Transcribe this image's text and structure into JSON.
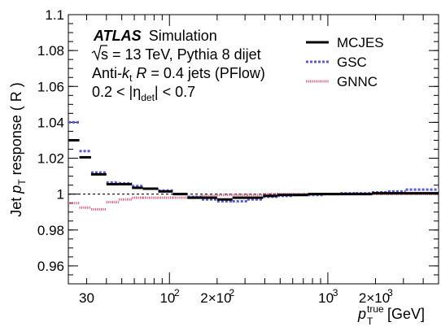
{
  "chart_data": {
    "type": "line",
    "x_scale": "log",
    "xlim": [
      23,
      5000
    ],
    "ylim": [
      0.95,
      1.1
    ],
    "xlabel_main": "p",
    "xlabel_sub": "T",
    "xlabel_sup": "true",
    "xlabel_unit": " [GeV]",
    "ylabel_main": "Jet ",
    "ylabel_p": "p",
    "ylabel_sub": "T",
    "ylabel_rest": " response ( R )",
    "x_tick_labels": [
      {
        "value": 30,
        "text": "30"
      },
      {
        "value": 100,
        "base": "10",
        "exp": "2"
      },
      {
        "value": 200,
        "base": "2×10",
        "exp": "2"
      },
      {
        "value": 1000,
        "base": "10",
        "exp": "3"
      },
      {
        "value": 2000,
        "base": "2×10",
        "exp": "3"
      }
    ],
    "y_tick_labels": [
      {
        "value": 0.96,
        "text": "0.96"
      },
      {
        "value": 0.98,
        "text": "0.98"
      },
      {
        "value": 1.0,
        "text": "1"
      },
      {
        "value": 1.02,
        "text": "1.02"
      },
      {
        "value": 1.04,
        "text": "1.04"
      },
      {
        "value": 1.06,
        "text": "1.06"
      },
      {
        "value": 1.08,
        "text": "1.08"
      },
      {
        "value": 1.1,
        "text": "1.1"
      }
    ],
    "reference_line": 1.0,
    "info": {
      "atlas": "ATLAS",
      "simulation": "Simulation",
      "line2": "s = 13 TeV, Pythia 8 dijet",
      "line3_a": "Anti-",
      "line3_k": "k",
      "line3_t": "t",
      "line3_R": "R",
      "line3_b": " = 0.4 jets (PFlow)",
      "line4_a": "0.2 < |",
      "line4_eta": "η",
      "line4_sub": "det",
      "line4_b": "| < 0.7"
    },
    "legend_position": "top-right",
    "series": [
      {
        "name": "MCJES",
        "color": "#000000",
        "style": "solid",
        "bins": [
          {
            "x0": 23,
            "x1": 27,
            "y": 1.03
          },
          {
            "x0": 27,
            "x1": 32,
            "y": 1.0205
          },
          {
            "x0": 32,
            "x1": 40,
            "y": 1.011
          },
          {
            "x0": 40,
            "x1": 48,
            "y": 1.0055
          },
          {
            "x0": 48,
            "x1": 58,
            "y": 1.0055
          },
          {
            "x0": 58,
            "x1": 68,
            "y": 1.0035
          },
          {
            "x0": 68,
            "x1": 85,
            "y": 1.003
          },
          {
            "x0": 85,
            "x1": 105,
            "y": 1.0015
          },
          {
            "x0": 105,
            "x1": 130,
            "y": 1.0
          },
          {
            "x0": 130,
            "x1": 160,
            "y": 0.998
          },
          {
            "x0": 160,
            "x1": 200,
            "y": 0.998
          },
          {
            "x0": 200,
            "x1": 250,
            "y": 0.997
          },
          {
            "x0": 250,
            "x1": 310,
            "y": 0.998
          },
          {
            "x0": 310,
            "x1": 390,
            "y": 0.998
          },
          {
            "x0": 390,
            "x1": 480,
            "y": 0.999
          },
          {
            "x0": 480,
            "x1": 600,
            "y": 0.9995
          },
          {
            "x0": 600,
            "x1": 750,
            "y": 0.9995
          },
          {
            "x0": 750,
            "x1": 950,
            "y": 1.0
          },
          {
            "x0": 950,
            "x1": 1200,
            "y": 1.0
          },
          {
            "x0": 1200,
            "x1": 1500,
            "y": 1.0
          },
          {
            "x0": 1500,
            "x1": 1900,
            "y": 1.0
          },
          {
            "x0": 1900,
            "x1": 2400,
            "y": 1.0005
          },
          {
            "x0": 2400,
            "x1": 3100,
            "y": 1.0005
          },
          {
            "x0": 3100,
            "x1": 5000,
            "y": 1.0005
          }
        ]
      },
      {
        "name": "GSC",
        "color": "#5a5ae0",
        "style": "dotted-thick",
        "bins": [
          {
            "x0": 23,
            "x1": 27,
            "y": 1.04
          },
          {
            "x0": 27,
            "x1": 32,
            "y": 1.024
          },
          {
            "x0": 32,
            "x1": 40,
            "y": 1.012
          },
          {
            "x0": 40,
            "x1": 48,
            "y": 1.0065
          },
          {
            "x0": 48,
            "x1": 58,
            "y": 1.006
          },
          {
            "x0": 58,
            "x1": 68,
            "y": 1.0045
          },
          {
            "x0": 68,
            "x1": 85,
            "y": 1.003
          },
          {
            "x0": 85,
            "x1": 105,
            "y": 1.002
          },
          {
            "x0": 105,
            "x1": 130,
            "y": 1.0
          },
          {
            "x0": 130,
            "x1": 160,
            "y": 0.9985
          },
          {
            "x0": 160,
            "x1": 200,
            "y": 0.997
          },
          {
            "x0": 200,
            "x1": 250,
            "y": 0.996
          },
          {
            "x0": 250,
            "x1": 310,
            "y": 0.996
          },
          {
            "x0": 310,
            "x1": 390,
            "y": 0.997
          },
          {
            "x0": 390,
            "x1": 480,
            "y": 0.9985
          },
          {
            "x0": 480,
            "x1": 600,
            "y": 0.999
          },
          {
            "x0": 600,
            "x1": 750,
            "y": 0.9995
          },
          {
            "x0": 750,
            "x1": 950,
            "y": 0.9995
          },
          {
            "x0": 950,
            "x1": 1200,
            "y": 1.0
          },
          {
            "x0": 1200,
            "x1": 1500,
            "y": 1.0005
          },
          {
            "x0": 1500,
            "x1": 1900,
            "y": 1.0005
          },
          {
            "x0": 1900,
            "x1": 2400,
            "y": 1.001
          },
          {
            "x0": 2400,
            "x1": 3100,
            "y": 1.0015
          },
          {
            "x0": 3100,
            "x1": 5000,
            "y": 1.0025
          }
        ]
      },
      {
        "name": "GNNC",
        "color": "#d9607a",
        "style": "dotted-thin",
        "bins": [
          {
            "x0": 23,
            "x1": 27,
            "y": 0.995
          },
          {
            "x0": 27,
            "x1": 32,
            "y": 0.9925
          },
          {
            "x0": 32,
            "x1": 40,
            "y": 0.9915
          },
          {
            "x0": 40,
            "x1": 48,
            "y": 0.9955
          },
          {
            "x0": 48,
            "x1": 58,
            "y": 0.997
          },
          {
            "x0": 58,
            "x1": 68,
            "y": 0.998
          },
          {
            "x0": 68,
            "x1": 85,
            "y": 0.998
          },
          {
            "x0": 85,
            "x1": 105,
            "y": 0.998
          },
          {
            "x0": 105,
            "x1": 130,
            "y": 0.998
          },
          {
            "x0": 130,
            "x1": 160,
            "y": 0.9985
          },
          {
            "x0": 160,
            "x1": 200,
            "y": 0.999
          },
          {
            "x0": 200,
            "x1": 250,
            "y": 0.9995
          },
          {
            "x0": 250,
            "x1": 310,
            "y": 0.9995
          },
          {
            "x0": 310,
            "x1": 390,
            "y": 0.9995
          },
          {
            "x0": 390,
            "x1": 480,
            "y": 1.0
          },
          {
            "x0": 480,
            "x1": 600,
            "y": 1.0
          },
          {
            "x0": 600,
            "x1": 750,
            "y": 1.0
          },
          {
            "x0": 750,
            "x1": 950,
            "y": 1.0
          },
          {
            "x0": 950,
            "x1": 1200,
            "y": 1.0
          },
          {
            "x0": 1200,
            "x1": 1500,
            "y": 1.0
          },
          {
            "x0": 1500,
            "x1": 1900,
            "y": 1.0
          },
          {
            "x0": 1900,
            "x1": 2400,
            "y": 1.0
          },
          {
            "x0": 2400,
            "x1": 3100,
            "y": 1.0
          },
          {
            "x0": 3100,
            "x1": 5000,
            "y": 1.0
          }
        ]
      }
    ]
  }
}
